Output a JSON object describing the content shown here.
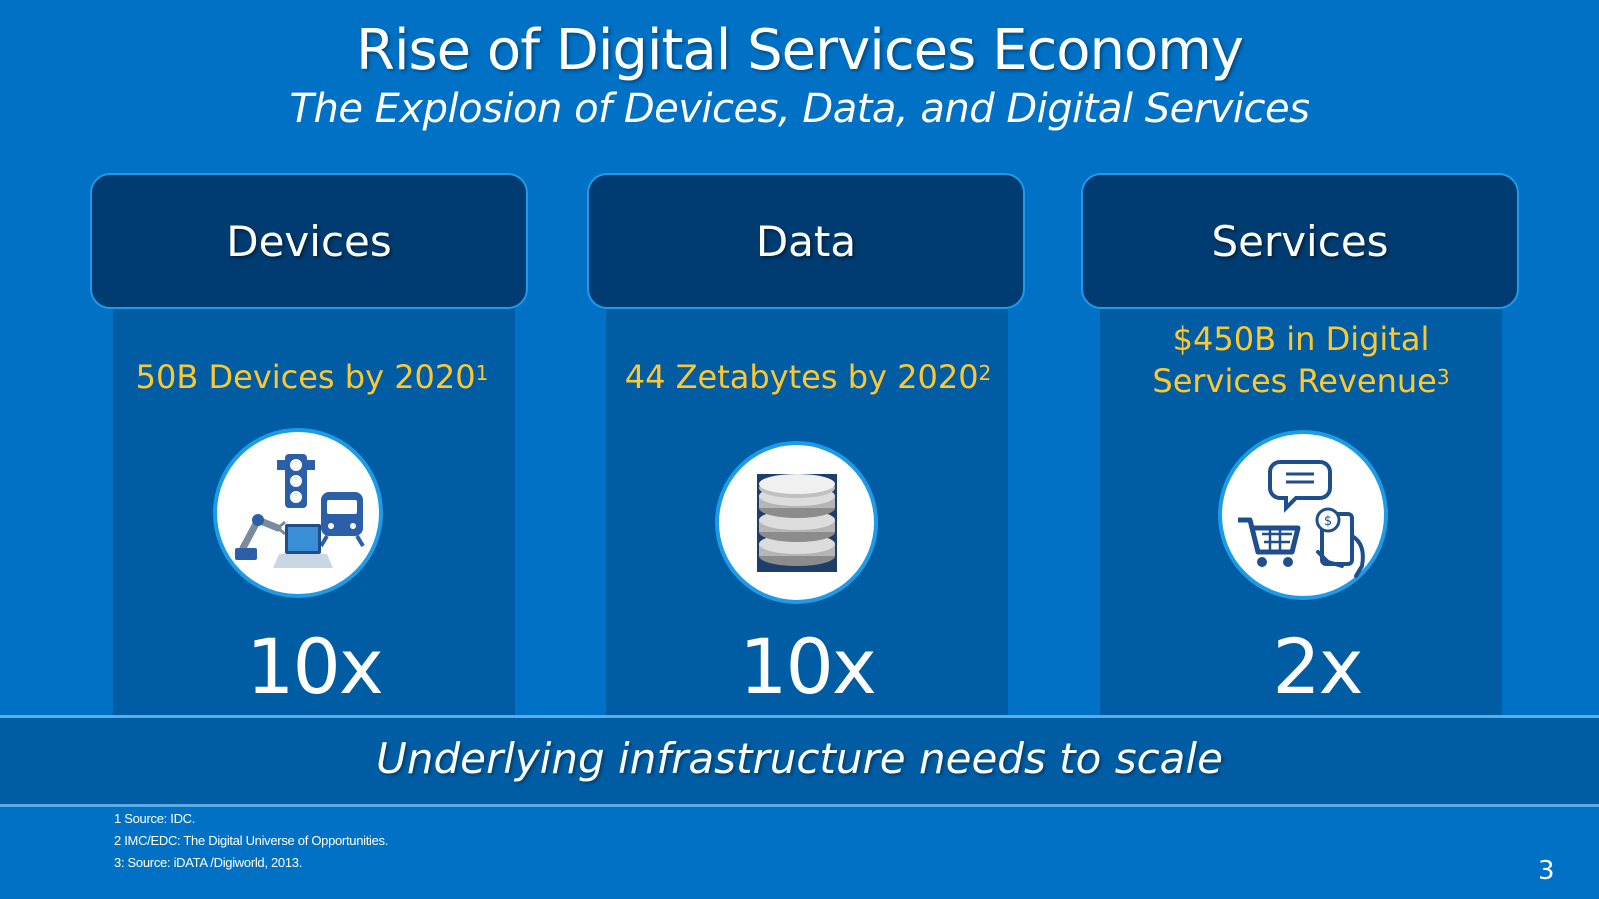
{
  "slide": {
    "title": "Rise of Digital Services Economy",
    "subtitle": "The Explosion of Devices, Data, and Digital Services",
    "page_number": "3"
  },
  "columns": [
    {
      "header": "Devices",
      "stat_lines": [
        "50B Devices by 2020"
      ],
      "stat_sup": "1",
      "icon": "devices-icon",
      "multiplier": "10x"
    },
    {
      "header": "Data",
      "stat_lines": [
        "44 Zetabytes by 2020"
      ],
      "stat_sup": "2",
      "icon": "database-icon",
      "multiplier": "10x"
    },
    {
      "header": "Services",
      "stat_lines": [
        "$450B in Digital",
        "Services Revenue"
      ],
      "stat_sup": "3",
      "icon": "digital-services-icon",
      "multiplier": "2x"
    }
  ],
  "banner": {
    "text": "Underlying infrastructure needs to scale"
  },
  "footnotes": [
    "1 Source: IDC.",
    "2 IMC/EDC: The Digital Universe of Opportunities.",
    "3: Source: iDATA /Digiworld, 2013."
  ],
  "colors": {
    "background": "#0071c5",
    "column": "#005da4",
    "header": "#003c71",
    "accent_border": "#1e9be6",
    "stat_text": "#fdc82f"
  }
}
